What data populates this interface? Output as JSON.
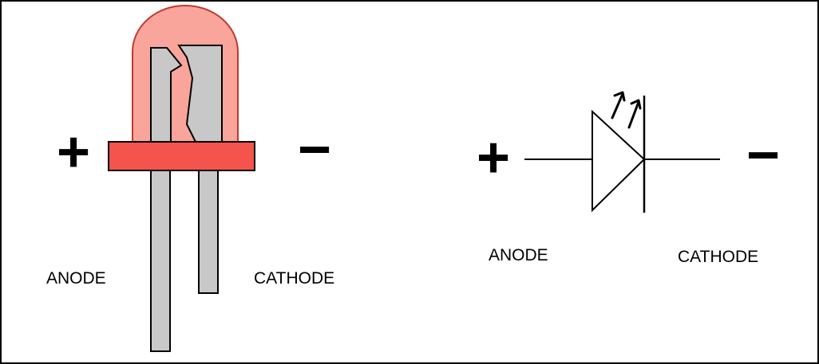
{
  "led_drawing": {
    "plus_label": "+",
    "minus_label": "−",
    "anode_label": "ANODE",
    "cathode_label": "CATHODE"
  },
  "schematic": {
    "plus_label": "+",
    "minus_label": "−",
    "anode_label": "ANODE",
    "cathode_label": "CATHODE"
  },
  "colors": {
    "lens_fill": "#f9a59b",
    "lens_outline": "#c0392b",
    "flange": "#f4544c",
    "lead_fill": "#c8c8c8",
    "lead_outline": "#000000",
    "stroke": "#000000",
    "background": "#ffffff"
  }
}
